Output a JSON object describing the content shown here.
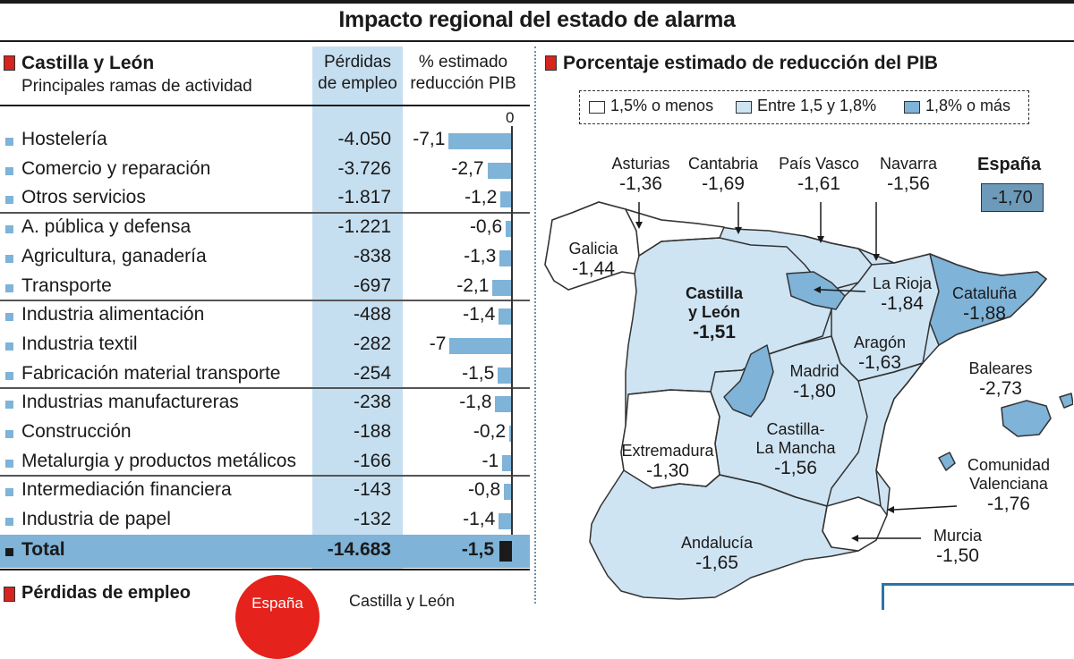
{
  "title": "Impacto regional del estado de alarma",
  "left": {
    "section_title": "Castilla y León",
    "section_subtitle": "Principales ramas de actividad",
    "col1_header_line1": "Pérdidas",
    "col1_header_line2": "de empleo",
    "col2_header_line1": "% estimado",
    "col2_header_line2": "reducción PIB",
    "zero_tick": "0",
    "total": {
      "label": "Total",
      "value": "-14.683",
      "pct": "-1,5"
    },
    "bottom_title": "Pérdidas de empleo",
    "bottom_badge": "España",
    "bottom_right_text": "Castilla y León"
  },
  "chart_data": {
    "type": "table",
    "title": "Castilla y León",
    "subtitle": "Principales ramas de actividad",
    "columns": [
      "Pérdidas de empleo",
      "% estimado reducción PIB"
    ],
    "rows": [
      {
        "label": "Hostelería",
        "empleo": "-4.050",
        "pct": "-7,1",
        "pct_value": -7.1
      },
      {
        "label": "Comercio y reparación",
        "empleo": "-3.726",
        "pct": "-2,7",
        "pct_value": -2.7
      },
      {
        "label": "Otros servicios",
        "empleo": "-1.817",
        "pct": "-1,2",
        "pct_value": -1.2
      },
      {
        "label": "A. pública y defensa",
        "empleo": "-1.221",
        "pct": "-0,6",
        "pct_value": -0.6
      },
      {
        "label": "Agricultura, ganadería",
        "empleo": "-838",
        "pct": "-1,3",
        "pct_value": -1.3
      },
      {
        "label": "Transporte",
        "empleo": "-697",
        "pct": "-2,1",
        "pct_value": -2.1
      },
      {
        "label": "Industria alimentación",
        "empleo": "-488",
        "pct": "-1,4",
        "pct_value": -1.4
      },
      {
        "label": "Industria textil",
        "empleo": "-282",
        "pct": "-7",
        "pct_value": -7.0
      },
      {
        "label": "Fabricación material transporte",
        "empleo": "-254",
        "pct": "-1,5",
        "pct_value": -1.5
      },
      {
        "label": "Industrias manufactureras",
        "empleo": "-238",
        "pct": "-1,8",
        "pct_value": -1.8
      },
      {
        "label": "Construcción",
        "empleo": "-188",
        "pct": "-0,2",
        "pct_value": -0.2
      },
      {
        "label": "Metalurgia y productos metálicos",
        "empleo": "-166",
        "pct": "-1",
        "pct_value": -1.0
      },
      {
        "label": "Intermediación financiera",
        "empleo": "-143",
        "pct": "-0,8",
        "pct_value": -0.8
      },
      {
        "label": "Industria de papel",
        "empleo": "-132",
        "pct": "-1,4",
        "pct_value": -1.4
      }
    ],
    "total": {
      "label": "Total",
      "empleo": "-14.683",
      "pct": "-1,5",
      "pct_value": -1.5
    }
  },
  "map": {
    "section_title": "Porcentaje estimado de reducción del PIB",
    "legend": [
      {
        "label": "1,5% o menos",
        "color": "#ffffff"
      },
      {
        "label": "Entre 1,5 y 1,8%",
        "color": "#cfe4f3"
      },
      {
        "label": "1,8% o más",
        "color": "#7fb3d8"
      }
    ],
    "espana": {
      "label": "España",
      "value": "-1,70"
    },
    "regions": [
      {
        "name": "Asturias",
        "value": "-1,36"
      },
      {
        "name": "Cantabria",
        "value": "-1,69"
      },
      {
        "name": "País Vasco",
        "value": "-1,61"
      },
      {
        "name": "Navarra",
        "value": "-1,56"
      },
      {
        "name": "Galicia",
        "value": "-1,44"
      },
      {
        "name": "Castilla",
        "name2": "y León",
        "value": "-1,51"
      },
      {
        "name": "La Rioja",
        "value": "-1,84"
      },
      {
        "name": "Cataluña",
        "value": "-1,88"
      },
      {
        "name": "Aragón",
        "value": "-1,63"
      },
      {
        "name": "Madrid",
        "value": "-1,80"
      },
      {
        "name": "Baleares",
        "value": "-2,73"
      },
      {
        "name": "Extremadura",
        "value": "-1,30"
      },
      {
        "name": "Castilla-",
        "name2": "La Mancha",
        "value": "-1,56"
      },
      {
        "name": "Comunidad",
        "name2": "Valenciana",
        "value": "-1,76"
      },
      {
        "name": "Murcia",
        "value": "-1,50"
      },
      {
        "name": "Andalucía",
        "value": "-1,65"
      }
    ]
  }
}
